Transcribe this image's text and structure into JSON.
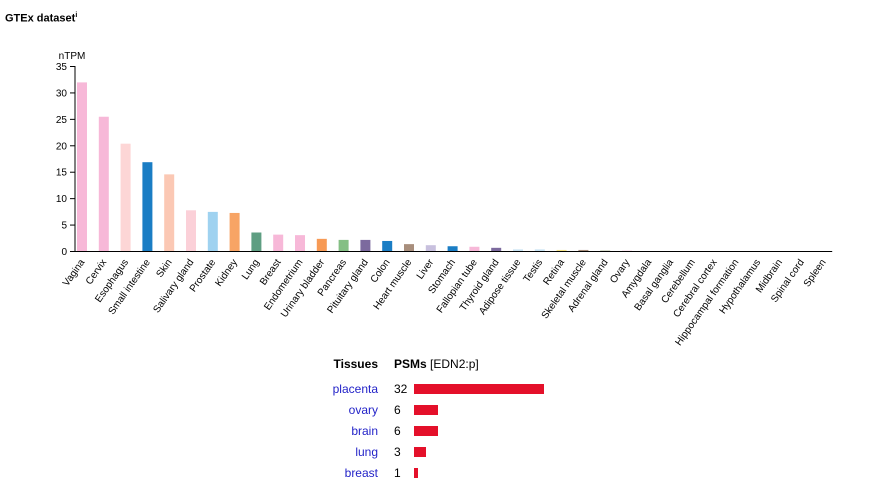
{
  "title": "GTEx dataset",
  "title_sup": "i",
  "chart_data": {
    "type": "bar",
    "ylabel": "nTPM",
    "ylim": [
      0,
      35
    ],
    "yticks": [
      0,
      5,
      10,
      15,
      20,
      25,
      30,
      35
    ],
    "categories": [
      "Vagina",
      "Cervix",
      "Esophagus",
      "Small intestine",
      "Skin",
      "Salivary gland",
      "Prostate",
      "Kidney",
      "Lung",
      "Breast",
      "Endometrium",
      "Urinary bladder",
      "Pancreas",
      "Pituitary gland",
      "Colon",
      "Heart muscle",
      "Liver",
      "Stomach",
      "Fallopian tube",
      "Thyroid gland",
      "Adipose tissue",
      "Testis",
      "Retina",
      "Skeletal muscle",
      "Adrenal gland",
      "Ovary",
      "Amygdala",
      "Basal ganglia",
      "Cerebellum",
      "Cerebral cortex",
      "Hippocampal formation",
      "Hypothalamus",
      "Midbrain",
      "Spinal cord",
      "Spleen"
    ],
    "values": [
      31.9,
      25.4,
      20.3,
      16.8,
      14.5,
      7.7,
      7.4,
      7.2,
      3.5,
      3.1,
      3.0,
      2.3,
      2.1,
      2.1,
      1.9,
      1.3,
      1.1,
      0.9,
      0.8,
      0.6,
      0.3,
      0.3,
      0.2,
      0.2,
      0.1,
      0.05,
      0,
      0,
      0,
      0,
      0,
      0,
      0,
      0,
      0
    ],
    "colors": [
      "#f7b8d8",
      "#f7b8d8",
      "#fdd6d6",
      "#1a7dc4",
      "#fbc8b4",
      "#fbd0d8",
      "#9fd2f0",
      "#f7a465",
      "#5e9e82",
      "#f7b8d8",
      "#f7b8d8",
      "#f79a55",
      "#84bf84",
      "#7c6a9e",
      "#1a7dc4",
      "#a88e7c",
      "#c8c0de",
      "#1a7dc4",
      "#f7b8d8",
      "#7c6a9e",
      "#c6e2f2",
      "#c6e2f2",
      "#f6e58a",
      "#a88e7c",
      "#b8c0a4",
      "#f7b8d8",
      "#f0d08a",
      "#f0d08a",
      "#f0d08a",
      "#f0d08a",
      "#f0d08a",
      "#f0d08a",
      "#f0d08a",
      "#f0d08a",
      "#c0c0c0"
    ]
  },
  "psm_table": {
    "header_tissues": "Tissues",
    "header_psms": "PSMs",
    "header_gene": "[EDN2:p]",
    "max": 32,
    "bar_color": "#e4102a",
    "rows": [
      {
        "tissue": "placenta",
        "count": 32
      },
      {
        "tissue": "ovary",
        "count": 6
      },
      {
        "tissue": "brain",
        "count": 6
      },
      {
        "tissue": "lung",
        "count": 3
      },
      {
        "tissue": "breast",
        "count": 1
      }
    ]
  }
}
